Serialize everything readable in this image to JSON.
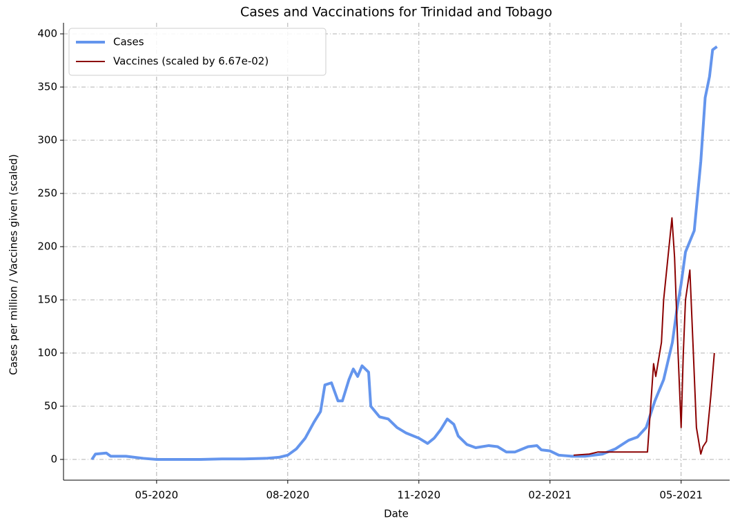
{
  "chart_data": {
    "type": "line",
    "title": "Cases and Vaccinations for Trinidad and Tobago",
    "xlabel": "Date",
    "ylabel": "Cases per million / Vaccines given (scaled)",
    "xlim": [
      2.87,
      18.11
    ],
    "xticks": [
      {
        "value": 5,
        "label": "05-2020"
      },
      {
        "value": 8,
        "label": "08-2020"
      },
      {
        "value": 11,
        "label": "11-2020"
      },
      {
        "value": 14,
        "label": "02-2021"
      },
      {
        "value": 17,
        "label": "05-2021"
      }
    ],
    "ylim": [
      -19.5,
      410.4
    ],
    "yticks": [
      0,
      50,
      100,
      150,
      200,
      250,
      300,
      350,
      400
    ],
    "grid": true,
    "legend": "upper left",
    "series": [
      {
        "name": "Cases",
        "color": "#6495ed",
        "width": 4,
        "x": [
          3.52,
          3.6,
          3.85,
          3.95,
          4.3,
          4.7,
          5,
          6,
          6.5,
          7,
          7.5,
          7.8,
          8,
          8.2,
          8.4,
          8.6,
          8.75,
          8.85,
          9.0,
          9.15,
          9.25,
          9.4,
          9.5,
          9.6,
          9.7,
          9.85,
          9.9,
          10.1,
          10.3,
          10.5,
          10.7,
          11,
          11.2,
          11.35,
          11.5,
          11.65,
          11.8,
          11.9,
          12.1,
          12.3,
          12.6,
          12.8,
          13.0,
          13.2,
          13.5,
          13.7,
          13.8,
          14,
          14.2,
          14.5,
          14.8,
          15.2,
          15.5,
          15.8,
          16.0,
          16.2,
          16.4,
          16.6,
          16.8,
          16.9,
          17.0,
          17.1,
          17.2,
          17.3,
          17.45,
          17.55,
          17.65,
          17.72,
          17.82
        ],
        "values": [
          0,
          5,
          6,
          3,
          3,
          1,
          0,
          0,
          0.5,
          0.5,
          1,
          2,
          4,
          10,
          20,
          35,
          45,
          70,
          72,
          55,
          55,
          75,
          85,
          78,
          88,
          82,
          50,
          40,
          38,
          30,
          25,
          20,
          15,
          20,
          28,
          38,
          33,
          22,
          14,
          11,
          13,
          12,
          7,
          7,
          12,
          13,
          9,
          8,
          4,
          3,
          3,
          5,
          10,
          18,
          21,
          30,
          55,
          75,
          110,
          140,
          165,
          195,
          205,
          215,
          280,
          340,
          360,
          385,
          388
        ]
      },
      {
        "name": "Vaccines (scaled by 6.67e-02)",
        "color": "#8b0000",
        "width": 2,
        "x": [
          14.54,
          14.9,
          15.1,
          16.23,
          16.37,
          16.42,
          16.55,
          16.6,
          16.79,
          16.85,
          16.93,
          17.0,
          17.05,
          17.1,
          17.2,
          17.28,
          17.35,
          17.45,
          17.5,
          17.58,
          17.68,
          17.76
        ],
        "values": [
          4,
          5,
          7,
          7,
          90,
          78,
          110,
          150,
          227,
          190,
          100,
          30,
          100,
          150,
          178,
          100,
          30,
          5,
          12,
          17,
          60,
          100
        ]
      }
    ]
  }
}
